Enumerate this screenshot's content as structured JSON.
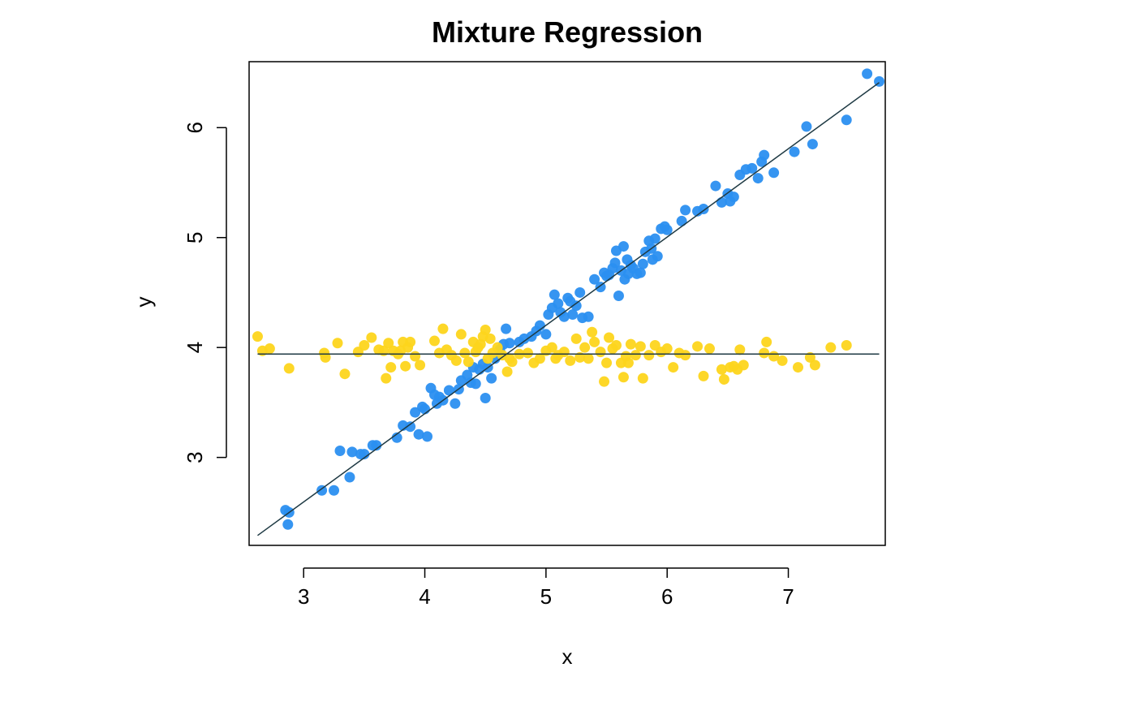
{
  "chart_data": {
    "type": "scatter",
    "title": "Mixture Regression",
    "xlabel": "x",
    "ylabel": "y",
    "xlim": [
      2.55,
      7.8
    ],
    "ylim": [
      2.2,
      6.6
    ],
    "x_ticks": [
      3,
      4,
      5,
      6,
      7
    ],
    "y_ticks": [
      3,
      4,
      5,
      6
    ],
    "grid": false,
    "legend": "none",
    "colors": {
      "series_blue": "#2b8ff0",
      "series_yellow": "#fdd51c",
      "fit_line": "#1f3a44"
    },
    "series": [
      {
        "color": "#2b8ff0",
        "points": [
          [
            2.85,
            2.52
          ],
          [
            2.87,
            2.39
          ],
          [
            2.88,
            2.5
          ],
          [
            3.15,
            2.7
          ],
          [
            3.25,
            2.7
          ],
          [
            3.3,
            3.06
          ],
          [
            3.38,
            2.82
          ],
          [
            3.4,
            3.05
          ],
          [
            3.47,
            3.03
          ],
          [
            3.5,
            3.03
          ],
          [
            3.57,
            3.11
          ],
          [
            3.6,
            3.11
          ],
          [
            3.77,
            3.18
          ],
          [
            3.82,
            3.29
          ],
          [
            3.88,
            3.28
          ],
          [
            3.92,
            3.41
          ],
          [
            3.95,
            3.21
          ],
          [
            3.98,
            3.46
          ],
          [
            4.0,
            3.44
          ],
          [
            4.02,
            3.19
          ],
          [
            4.05,
            3.63
          ],
          [
            4.08,
            3.57
          ],
          [
            4.1,
            3.49
          ],
          [
            4.12,
            3.55
          ],
          [
            4.15,
            3.52
          ],
          [
            4.2,
            3.61
          ],
          [
            4.25,
            3.49
          ],
          [
            4.28,
            3.62
          ],
          [
            4.3,
            3.7
          ],
          [
            4.35,
            3.75
          ],
          [
            4.38,
            3.68
          ],
          [
            4.4,
            3.82
          ],
          [
            4.42,
            3.67
          ],
          [
            4.45,
            3.8
          ],
          [
            4.48,
            3.85
          ],
          [
            4.5,
            3.54
          ],
          [
            4.52,
            3.82
          ],
          [
            4.55,
            3.72
          ],
          [
            4.58,
            3.9
          ],
          [
            4.62,
            3.98
          ],
          [
            4.65,
            4.03
          ],
          [
            4.67,
            4.17
          ],
          [
            4.7,
            4.04
          ],
          [
            4.78,
            4.05
          ],
          [
            4.82,
            4.08
          ],
          [
            4.88,
            4.1
          ],
          [
            4.92,
            4.15
          ],
          [
            4.95,
            4.2
          ],
          [
            5.0,
            4.12
          ],
          [
            5.02,
            4.3
          ],
          [
            5.05,
            4.36
          ],
          [
            5.07,
            4.48
          ],
          [
            5.1,
            4.4
          ],
          [
            5.12,
            4.32
          ],
          [
            5.15,
            4.28
          ],
          [
            5.18,
            4.45
          ],
          [
            5.2,
            4.42
          ],
          [
            5.22,
            4.3
          ],
          [
            5.25,
            4.38
          ],
          [
            5.28,
            4.5
          ],
          [
            5.3,
            4.27
          ],
          [
            5.35,
            4.28
          ],
          [
            5.4,
            4.62
          ],
          [
            5.45,
            4.55
          ],
          [
            5.48,
            4.68
          ],
          [
            5.5,
            4.65
          ],
          [
            5.52,
            4.66
          ],
          [
            5.55,
            4.72
          ],
          [
            5.57,
            4.77
          ],
          [
            5.58,
            4.88
          ],
          [
            5.6,
            4.47
          ],
          [
            5.62,
            4.7
          ],
          [
            5.64,
            4.92
          ],
          [
            5.65,
            4.62
          ],
          [
            5.67,
            4.8
          ],
          [
            5.68,
            4.67
          ],
          [
            5.7,
            4.75
          ],
          [
            5.72,
            4.72
          ],
          [
            5.75,
            4.67
          ],
          [
            5.78,
            4.68
          ],
          [
            5.8,
            4.76
          ],
          [
            5.82,
            4.87
          ],
          [
            5.85,
            4.97
          ],
          [
            5.87,
            4.9
          ],
          [
            5.88,
            4.8
          ],
          [
            5.9,
            4.99
          ],
          [
            5.92,
            4.83
          ],
          [
            5.95,
            5.08
          ],
          [
            5.98,
            5.1
          ],
          [
            6.0,
            5.07
          ],
          [
            6.12,
            5.15
          ],
          [
            6.15,
            5.25
          ],
          [
            6.25,
            5.24
          ],
          [
            6.3,
            5.26
          ],
          [
            6.4,
            5.47
          ],
          [
            6.45,
            5.32
          ],
          [
            6.5,
            5.4
          ],
          [
            6.52,
            5.33
          ],
          [
            6.55,
            5.37
          ],
          [
            6.6,
            5.57
          ],
          [
            6.65,
            5.62
          ],
          [
            6.7,
            5.63
          ],
          [
            6.75,
            5.54
          ],
          [
            6.78,
            5.69
          ],
          [
            6.8,
            5.75
          ],
          [
            6.88,
            5.59
          ],
          [
            7.05,
            5.78
          ],
          [
            7.15,
            6.01
          ],
          [
            7.2,
            5.85
          ],
          [
            7.48,
            6.07
          ],
          [
            7.65,
            6.49
          ],
          [
            7.75,
            6.42
          ]
        ]
      },
      {
        "color": "#fdd51c",
        "points": [
          [
            2.62,
            4.1
          ],
          [
            2.66,
            3.97
          ],
          [
            2.72,
            3.99
          ],
          [
            2.88,
            3.81
          ],
          [
            3.17,
            3.95
          ],
          [
            3.18,
            3.91
          ],
          [
            3.28,
            4.04
          ],
          [
            3.34,
            3.76
          ],
          [
            3.45,
            3.96
          ],
          [
            3.5,
            4.02
          ],
          [
            3.56,
            4.09
          ],
          [
            3.62,
            3.98
          ],
          [
            3.66,
            3.97
          ],
          [
            3.68,
            3.72
          ],
          [
            3.7,
            4.04
          ],
          [
            3.72,
            3.82
          ],
          [
            3.74,
            3.97
          ],
          [
            3.78,
            3.94
          ],
          [
            3.8,
            3.97
          ],
          [
            3.82,
            4.05
          ],
          [
            3.84,
            3.83
          ],
          [
            3.86,
            4.0
          ],
          [
            3.88,
            4.05
          ],
          [
            3.92,
            3.92
          ],
          [
            3.96,
            3.84
          ],
          [
            4.08,
            4.06
          ],
          [
            4.12,
            3.95
          ],
          [
            4.15,
            4.17
          ],
          [
            4.18,
            3.98
          ],
          [
            4.22,
            3.93
          ],
          [
            4.26,
            3.88
          ],
          [
            4.3,
            4.12
          ],
          [
            4.33,
            3.95
          ],
          [
            4.36,
            3.87
          ],
          [
            4.4,
            4.05
          ],
          [
            4.42,
            3.96
          ],
          [
            4.44,
            4.0
          ],
          [
            4.46,
            4.03
          ],
          [
            4.48,
            4.1
          ],
          [
            4.5,
            4.16
          ],
          [
            4.52,
            3.9
          ],
          [
            4.54,
            4.08
          ],
          [
            4.56,
            3.95
          ],
          [
            4.6,
            4.0
          ],
          [
            4.64,
            3.93
          ],
          [
            4.68,
            3.78
          ],
          [
            4.7,
            3.9
          ],
          [
            4.72,
            3.87
          ],
          [
            4.78,
            3.94
          ],
          [
            4.85,
            3.95
          ],
          [
            4.9,
            3.86
          ],
          [
            4.95,
            3.9
          ],
          [
            5.0,
            3.97
          ],
          [
            5.05,
            4.0
          ],
          [
            5.08,
            3.9
          ],
          [
            5.1,
            3.93
          ],
          [
            5.15,
            3.96
          ],
          [
            5.2,
            3.88
          ],
          [
            5.25,
            4.08
          ],
          [
            5.28,
            3.91
          ],
          [
            5.32,
            4.0
          ],
          [
            5.35,
            3.9
          ],
          [
            5.38,
            4.14
          ],
          [
            5.4,
            4.05
          ],
          [
            5.45,
            3.96
          ],
          [
            5.48,
            3.69
          ],
          [
            5.5,
            3.86
          ],
          [
            5.52,
            4.09
          ],
          [
            5.55,
            3.99
          ],
          [
            5.58,
            4.02
          ],
          [
            5.62,
            3.86
          ],
          [
            5.64,
            3.73
          ],
          [
            5.66,
            3.92
          ],
          [
            5.68,
            3.86
          ],
          [
            5.7,
            4.03
          ],
          [
            5.74,
            3.93
          ],
          [
            5.78,
            4.01
          ],
          [
            5.8,
            3.72
          ],
          [
            5.85,
            3.93
          ],
          [
            5.9,
            4.02
          ],
          [
            5.95,
            3.96
          ],
          [
            6.0,
            3.99
          ],
          [
            6.05,
            3.82
          ],
          [
            6.1,
            3.95
          ],
          [
            6.15,
            3.93
          ],
          [
            6.25,
            4.01
          ],
          [
            6.3,
            3.74
          ],
          [
            6.35,
            3.99
          ],
          [
            6.45,
            3.8
          ],
          [
            6.47,
            3.71
          ],
          [
            6.52,
            3.82
          ],
          [
            6.55,
            3.83
          ],
          [
            6.58,
            3.8
          ],
          [
            6.6,
            3.98
          ],
          [
            6.63,
            3.84
          ],
          [
            6.8,
            3.95
          ],
          [
            6.82,
            4.05
          ],
          [
            6.88,
            3.92
          ],
          [
            6.95,
            3.88
          ],
          [
            7.08,
            3.82
          ],
          [
            7.18,
            3.91
          ],
          [
            7.22,
            3.84
          ],
          [
            7.35,
            4.0
          ],
          [
            7.48,
            4.02
          ]
        ]
      }
    ],
    "fit_lines": [
      {
        "x": [
          2.62,
          7.75
        ],
        "y": [
          2.29,
          6.41
        ],
        "color": "#1f3a44"
      },
      {
        "x": [
          2.62,
          7.75
        ],
        "y": [
          3.94,
          3.94
        ],
        "color": "#1f3a44"
      }
    ]
  }
}
